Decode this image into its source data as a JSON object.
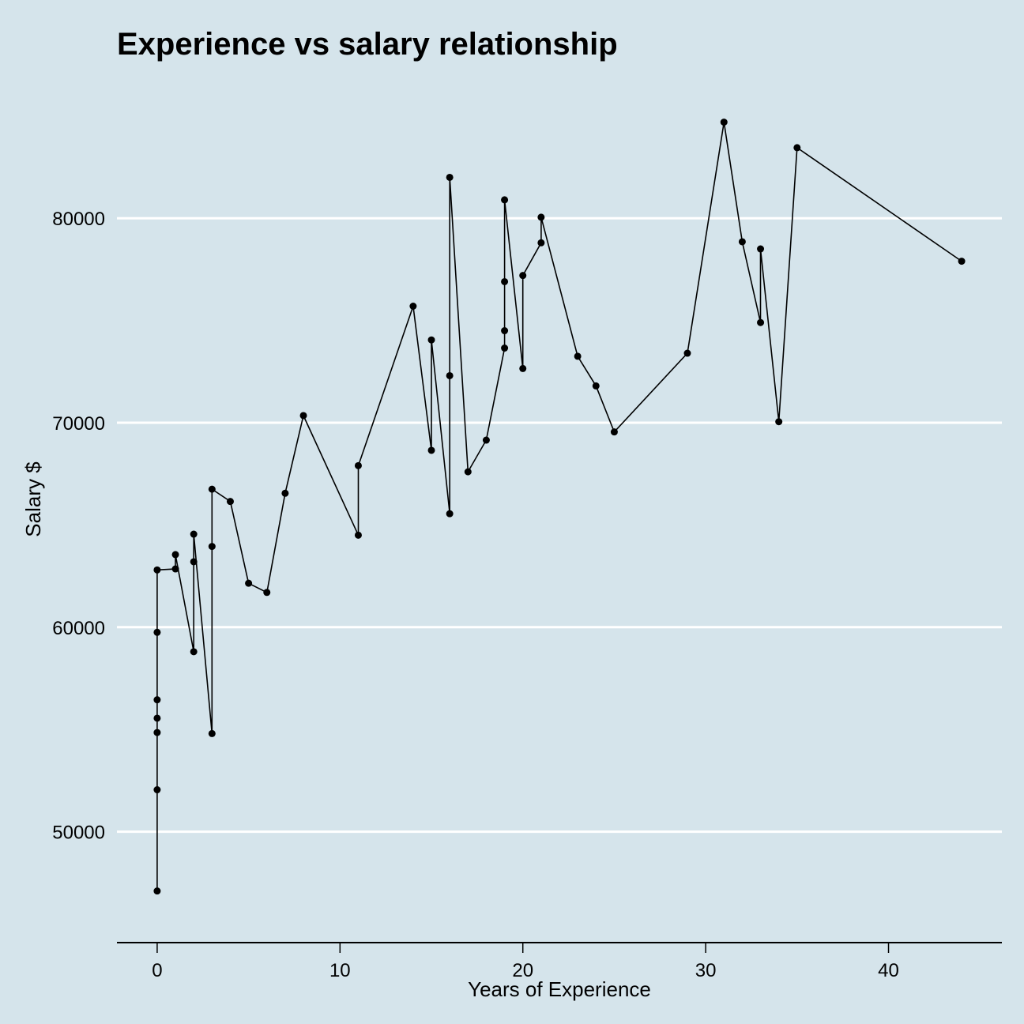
{
  "chart_data": {
    "type": "line",
    "title": "Experience vs salary relationship",
    "xlabel": "Years of Experience",
    "ylabel": "Salary $",
    "xlim": [
      -2.2,
      46.2
    ],
    "ylim": [
      45000,
      86500
    ],
    "xticks": [
      0,
      10,
      20,
      30,
      40
    ],
    "yticks": [
      50000,
      60000,
      70000,
      80000
    ],
    "grid": "horizontal",
    "colors": {
      "background": "#d5e4eb",
      "grid": "#ffffff",
      "line": "#000000"
    },
    "series": [
      {
        "x": [
          0,
          0,
          0,
          0,
          0,
          0,
          0,
          1,
          1,
          2,
          2,
          2,
          3,
          3,
          3,
          4,
          5,
          6,
          7,
          8,
          11,
          11,
          14,
          15,
          15,
          16,
          16,
          16,
          17,
          18,
          19,
          19,
          19,
          19,
          20,
          20,
          21,
          21,
          23,
          24,
          25,
          29,
          31,
          32,
          33,
          33,
          34,
          35,
          44
        ],
        "y": [
          47100,
          52050,
          54850,
          55550,
          56450,
          59750,
          62800,
          62850,
          63550,
          58800,
          63200,
          64550,
          54800,
          63950,
          66750,
          66150,
          62150,
          61700,
          66550,
          70350,
          64500,
          67900,
          75700,
          68650,
          74050,
          65550,
          72300,
          82000,
          67600,
          69150,
          73650,
          74500,
          76900,
          80900,
          72650,
          77200,
          78800,
          80050,
          73250,
          71800,
          69550,
          73400,
          84700,
          78850,
          74900,
          78500,
          70050,
          83450,
          77900
        ]
      }
    ]
  }
}
